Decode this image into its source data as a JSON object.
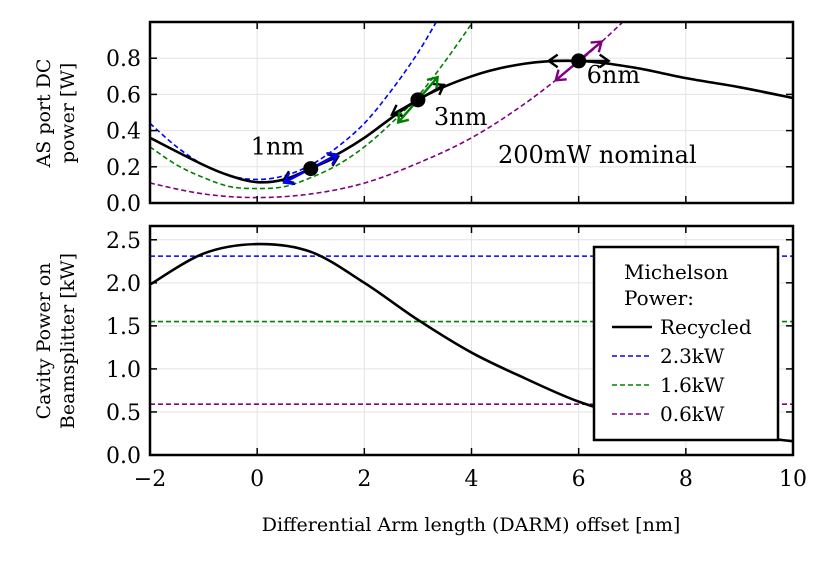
{
  "chart_data": [
    {
      "type": "line",
      "ylabel": [
        "AS port DC",
        "power [W]"
      ],
      "xlim": [
        -2,
        10
      ],
      "ylim": [
        0,
        1.0
      ],
      "yticks": [
        "0.0",
        "0.2",
        "0.4",
        "0.6",
        "0.8"
      ],
      "ytick_values": [
        0,
        0.2,
        0.4,
        0.6,
        0.8
      ],
      "grid": true,
      "series": [
        {
          "key": "recycled",
          "color": "#000000",
          "style": "solid",
          "x": [
            -2,
            -1,
            -0.5,
            0,
            0.5,
            1,
            1.5,
            2,
            3,
            4,
            5,
            6,
            7,
            8,
            9,
            10
          ],
          "y": [
            0.36,
            0.21,
            0.15,
            0.115,
            0.13,
            0.19,
            0.27,
            0.36,
            0.57,
            0.7,
            0.77,
            0.785,
            0.75,
            0.69,
            0.64,
            0.58
          ]
        },
        {
          "key": "p23",
          "color": "#0000ff",
          "style": "dashed",
          "x": [
            -2,
            -1.5,
            -1,
            -0.5,
            0,
            0.5,
            1,
            1.5,
            2,
            2.5,
            3,
            3.4
          ],
          "y": [
            0.44,
            0.31,
            0.21,
            0.15,
            0.13,
            0.15,
            0.21,
            0.31,
            0.44,
            0.62,
            0.83,
            1.03
          ]
        },
        {
          "key": "p16",
          "color": "#008000",
          "style": "dashed",
          "x": [
            -2,
            -1.5,
            -1,
            -0.5,
            0,
            0.5,
            1,
            1.5,
            2,
            2.5,
            3,
            3.5,
            4,
            4.1
          ],
          "y": [
            0.31,
            0.21,
            0.14,
            0.09,
            0.08,
            0.09,
            0.14,
            0.21,
            0.31,
            0.44,
            0.59,
            0.78,
            0.99,
            1.04
          ]
        },
        {
          "key": "p06",
          "color": "#800080",
          "style": "dashed",
          "x": [
            -2,
            -1,
            0,
            1,
            2,
            3,
            4,
            5,
            6,
            6.5,
            7
          ],
          "y": [
            0.11,
            0.05,
            0.03,
            0.05,
            0.11,
            0.22,
            0.36,
            0.55,
            0.78,
            0.91,
            1.05
          ]
        }
      ],
      "points": [
        {
          "label": "1nm",
          "x": 1,
          "y": 0.19,
          "arrows": [
            {
              "color": "#000000",
              "slope": 0.13
            },
            {
              "color": "#0000ff",
              "slope": 0.156
            }
          ]
        },
        {
          "label": "3nm",
          "x": 3,
          "y": 0.57,
          "arrows": [
            {
              "color": "#000000",
              "slope": 0.17
            },
            {
              "color": "#008000",
              "slope": 0.34
            }
          ]
        },
        {
          "label": "6nm",
          "x": 6,
          "y": 0.785,
          "arrows": [
            {
              "color": "#000000",
              "slope": 0.0
            },
            {
              "color": "#800080",
              "slope": 0.25
            }
          ]
        }
      ],
      "annotation": "200mW nominal"
    },
    {
      "type": "line",
      "ylabel": [
        "Cavity Power on",
        "Beamsplitter [kW]"
      ],
      "xlabel": "Differential Arm length (DARM) offset [nm]",
      "xlim": [
        -2,
        10
      ],
      "ylim": [
        0,
        2.66
      ],
      "xticks": [
        "−2",
        "0",
        "2",
        "4",
        "6",
        "8",
        "10"
      ],
      "xtick_values": [
        -2,
        0,
        2,
        4,
        6,
        8,
        10
      ],
      "yticks": [
        "0.0",
        "0.5",
        "1.0",
        "1.5",
        "2.0",
        "2.5"
      ],
      "ytick_values": [
        0,
        0.5,
        1.0,
        1.5,
        2.0,
        2.5
      ],
      "grid": true,
      "series": [
        {
          "key": "recycled",
          "name": "Recycled",
          "color": "#000000",
          "style": "solid",
          "x": [
            -2,
            -1,
            0,
            1,
            2,
            3,
            4,
            5,
            6,
            7,
            8,
            9,
            10
          ],
          "y": [
            1.98,
            2.34,
            2.45,
            2.36,
            2.0,
            1.57,
            1.19,
            0.89,
            0.62,
            0.44,
            0.32,
            0.23,
            0.16
          ]
        },
        {
          "key": "p23",
          "name": "2.3kW",
          "color": "#0000ff",
          "style": "dashed",
          "x": [
            -2,
            10
          ],
          "y": [
            2.31,
            2.31
          ]
        },
        {
          "key": "p16",
          "name": "1.6kW",
          "color": "#008000",
          "style": "dashed",
          "x": [
            -2,
            10
          ],
          "y": [
            1.55,
            1.55
          ]
        },
        {
          "key": "p06",
          "name": "0.6kW",
          "color": "#800080",
          "style": "dashed",
          "x": [
            -2,
            10
          ],
          "y": [
            0.59,
            0.59
          ]
        }
      ],
      "legend": {
        "title": [
          "Michelson",
          "Power:"
        ],
        "placement": "right",
        "entries": [
          "Recycled",
          "2.3kW",
          "1.6kW",
          "0.6kW"
        ]
      }
    }
  ]
}
